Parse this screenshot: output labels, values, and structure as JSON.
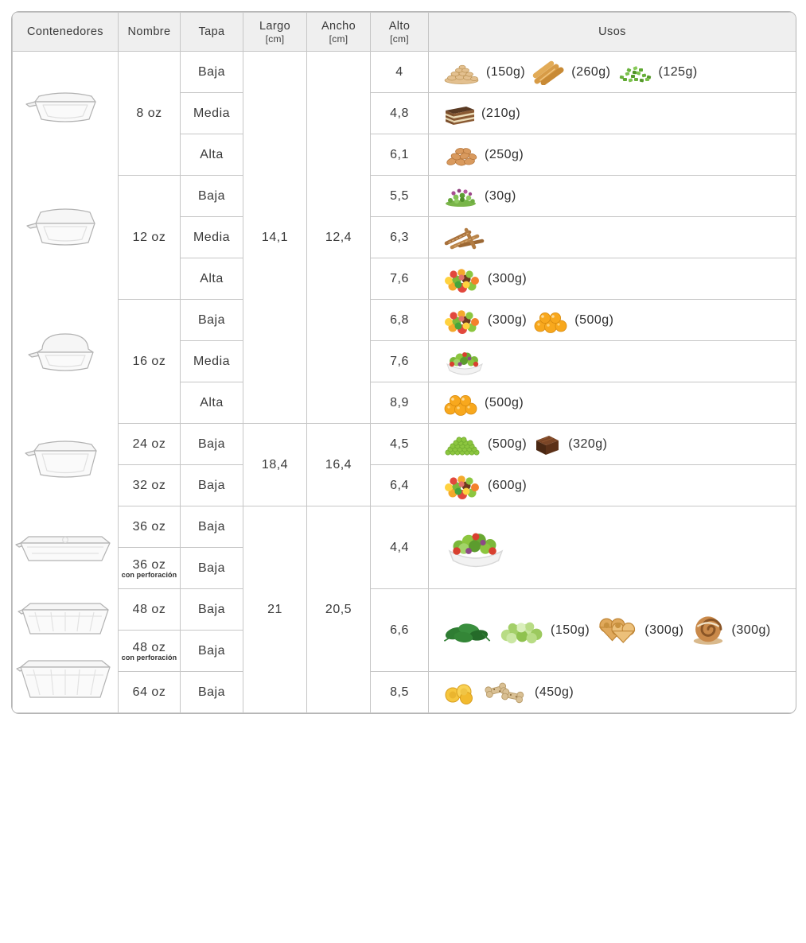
{
  "header": {
    "contenedores": "Contenedores",
    "nombre": "Nombre",
    "tapa": "Tapa",
    "largo": "Largo",
    "ancho": "Ancho",
    "alto": "Alto",
    "cm_unit": "[cm]",
    "usos": "Usos"
  },
  "colors": {
    "header_bg": "#efefef",
    "grid_border": "#c6c6c6",
    "outer_border": "#b5b5b5",
    "text": "#3d3d3d"
  },
  "rows": [
    {
      "nombre": "8 oz",
      "tapa": "Baja",
      "alto": "4"
    },
    {
      "tapa": "Media",
      "alto": "4,8"
    },
    {
      "tapa": "Alta",
      "alto": "6,1"
    },
    {
      "nombre": "12 oz",
      "tapa": "Baja",
      "alto": "5,5"
    },
    {
      "tapa": "Media",
      "alto": "6,3"
    },
    {
      "tapa": "Alta",
      "alto": "7,6"
    },
    {
      "nombre": "16 oz",
      "tapa": "Baja",
      "alto": "6,8"
    },
    {
      "tapa": "Media",
      "alto": "7,6"
    },
    {
      "tapa": "Alta",
      "alto": "8,9"
    },
    {
      "nombre": "24 oz",
      "tapa": "Baja",
      "alto": "4,5"
    },
    {
      "nombre": "32 oz",
      "tapa": "Baja",
      "alto": "6,4"
    },
    {
      "nombre": "36 oz",
      "tapa": "Baja",
      "alto": "4,4"
    },
    {
      "nombre": "36 oz",
      "nombre_sub": "con perforación",
      "tapa": "Baja"
    },
    {
      "nombre": "48 oz",
      "tapa": "Baja",
      "alto": "6,6"
    },
    {
      "nombre": "48 oz",
      "nombre_sub": "con perforación",
      "tapa": "Baja"
    },
    {
      "nombre": "64 oz",
      "tapa": "Baja",
      "alto": "8,5"
    }
  ],
  "dimensions": {
    "group1": {
      "largo": "14,1",
      "ancho": "12,4"
    },
    "group2": {
      "largo": "18,4",
      "ancho": "16,4"
    },
    "group3": {
      "largo": "21",
      "ancho": "20,5"
    }
  },
  "usos_cells": [
    {
      "items": [
        {
          "icon": "peanuts",
          "label": "(150g)"
        },
        {
          "icon": "wafer-rolls",
          "label": "(260g)"
        },
        {
          "icon": "chopped-chives",
          "label": "(125g)"
        }
      ]
    },
    {
      "items": [
        {
          "icon": "tiramisu",
          "label": "(210g)"
        }
      ]
    },
    {
      "items": [
        {
          "icon": "almonds",
          "label": "(250g)"
        }
      ]
    },
    {
      "items": [
        {
          "icon": "microgreens",
          "label": "(30g)"
        }
      ]
    },
    {
      "items": [
        {
          "icon": "wafer-sticks",
          "label": ""
        }
      ]
    },
    {
      "items": [
        {
          "icon": "fruit-salad",
          "label": "(300g)"
        }
      ]
    },
    {
      "items": [
        {
          "icon": "fruit-salad",
          "label": "(300g)"
        },
        {
          "icon": "golden-berries",
          "label": "(500g)"
        }
      ]
    },
    {
      "items": [
        {
          "icon": "salad-bowl",
          "label": ""
        }
      ]
    },
    {
      "items": [
        {
          "icon": "golden-berries",
          "label": "(500g)"
        }
      ]
    },
    {
      "items": [
        {
          "icon": "green-peas",
          "label": "(500g)"
        },
        {
          "icon": "brownie",
          "label": "(320g)"
        }
      ]
    },
    {
      "items": [
        {
          "icon": "fruit-salad",
          "label": "(600g)"
        }
      ]
    },
    {
      "items": [
        {
          "icon": "salad-bowl",
          "label": "",
          "scale": 1.5
        }
      ]
    },
    {
      "items": [
        {
          "icon": "spinach",
          "label": "",
          "scale": 1.2
        },
        {
          "icon": "lettuce",
          "label": "(150g)",
          "scale": 1.2
        },
        {
          "icon": "palmiers",
          "label": "(300g)",
          "scale": 1.2
        },
        {
          "icon": "cinnamon-roll",
          "label": "(300g)",
          "scale": 1.15
        }
      ]
    },
    {
      "items": [
        {
          "icon": "plantain-chips",
          "label": ""
        },
        {
          "icon": "bone-cookies",
          "label": "(450g)",
          "scale": 1.15
        }
      ]
    }
  ],
  "containers": [
    {
      "name": "container-8oz"
    },
    {
      "name": "container-12oz"
    },
    {
      "name": "container-16oz"
    },
    {
      "name": "container-24-32oz"
    },
    {
      "name": "container-36oz"
    },
    {
      "name": "container-48oz"
    },
    {
      "name": "container-64oz"
    }
  ]
}
